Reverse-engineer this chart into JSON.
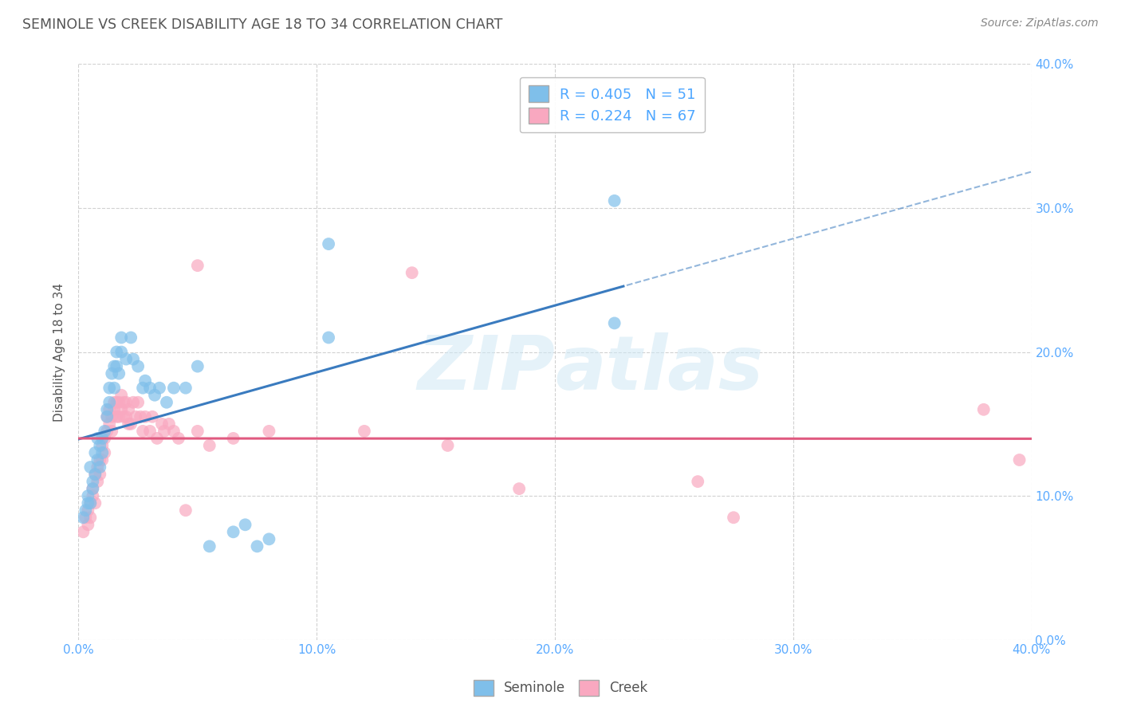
{
  "title": "SEMINOLE VS CREEK DISABILITY AGE 18 TO 34 CORRELATION CHART",
  "source": "Source: ZipAtlas.com",
  "ylabel": "Disability Age 18 to 34",
  "xlim": [
    0.0,
    0.4
  ],
  "ylim": [
    0.0,
    0.4
  ],
  "xticks": [
    0.0,
    0.1,
    0.2,
    0.3,
    0.4
  ],
  "yticks": [
    0.0,
    0.1,
    0.2,
    0.3,
    0.4
  ],
  "xlabels": [
    "0.0%",
    "10.0%",
    "20.0%",
    "30.0%",
    "40.0%"
  ],
  "ylabels": [
    "0.0%",
    "10.0%",
    "20.0%",
    "30.0%",
    "40.0%"
  ],
  "seminole_R": 0.405,
  "seminole_N": 51,
  "creek_R": 0.224,
  "creek_N": 67,
  "seminole_color": "#7fbfea",
  "creek_color": "#f9a8c0",
  "seminole_line_color": "#3a7bbf",
  "creek_line_color": "#e05a80",
  "watermark": "ZIPatlas",
  "seminole_points": [
    [
      0.002,
      0.085
    ],
    [
      0.003,
      0.09
    ],
    [
      0.004,
      0.1
    ],
    [
      0.004,
      0.095
    ],
    [
      0.005,
      0.095
    ],
    [
      0.005,
      0.12
    ],
    [
      0.006,
      0.105
    ],
    [
      0.006,
      0.11
    ],
    [
      0.007,
      0.115
    ],
    [
      0.007,
      0.13
    ],
    [
      0.008,
      0.125
    ],
    [
      0.008,
      0.14
    ],
    [
      0.009,
      0.12
    ],
    [
      0.009,
      0.135
    ],
    [
      0.01,
      0.14
    ],
    [
      0.01,
      0.13
    ],
    [
      0.011,
      0.145
    ],
    [
      0.012,
      0.155
    ],
    [
      0.012,
      0.16
    ],
    [
      0.013,
      0.165
    ],
    [
      0.013,
      0.175
    ],
    [
      0.014,
      0.185
    ],
    [
      0.015,
      0.175
    ],
    [
      0.015,
      0.19
    ],
    [
      0.016,
      0.19
    ],
    [
      0.016,
      0.2
    ],
    [
      0.017,
      0.185
    ],
    [
      0.018,
      0.2
    ],
    [
      0.018,
      0.21
    ],
    [
      0.02,
      0.195
    ],
    [
      0.022,
      0.21
    ],
    [
      0.023,
      0.195
    ],
    [
      0.025,
      0.19
    ],
    [
      0.027,
      0.175
    ],
    [
      0.028,
      0.18
    ],
    [
      0.03,
      0.175
    ],
    [
      0.032,
      0.17
    ],
    [
      0.034,
      0.175
    ],
    [
      0.037,
      0.165
    ],
    [
      0.04,
      0.175
    ],
    [
      0.045,
      0.175
    ],
    [
      0.05,
      0.19
    ],
    [
      0.055,
      0.065
    ],
    [
      0.065,
      0.075
    ],
    [
      0.07,
      0.08
    ],
    [
      0.075,
      0.065
    ],
    [
      0.08,
      0.07
    ],
    [
      0.105,
      0.21
    ],
    [
      0.105,
      0.275
    ],
    [
      0.225,
      0.22
    ],
    [
      0.225,
      0.305
    ]
  ],
  "creek_points": [
    [
      0.002,
      0.075
    ],
    [
      0.003,
      0.085
    ],
    [
      0.004,
      0.08
    ],
    [
      0.004,
      0.09
    ],
    [
      0.005,
      0.085
    ],
    [
      0.005,
      0.095
    ],
    [
      0.006,
      0.1
    ],
    [
      0.006,
      0.105
    ],
    [
      0.007,
      0.095
    ],
    [
      0.007,
      0.115
    ],
    [
      0.008,
      0.11
    ],
    [
      0.008,
      0.12
    ],
    [
      0.009,
      0.115
    ],
    [
      0.009,
      0.125
    ],
    [
      0.01,
      0.125
    ],
    [
      0.01,
      0.135
    ],
    [
      0.011,
      0.13
    ],
    [
      0.011,
      0.14
    ],
    [
      0.012,
      0.145
    ],
    [
      0.012,
      0.155
    ],
    [
      0.013,
      0.15
    ],
    [
      0.013,
      0.16
    ],
    [
      0.014,
      0.145
    ],
    [
      0.014,
      0.155
    ],
    [
      0.015,
      0.16
    ],
    [
      0.015,
      0.165
    ],
    [
      0.016,
      0.155
    ],
    [
      0.016,
      0.165
    ],
    [
      0.017,
      0.155
    ],
    [
      0.017,
      0.165
    ],
    [
      0.018,
      0.16
    ],
    [
      0.018,
      0.17
    ],
    [
      0.019,
      0.155
    ],
    [
      0.019,
      0.165
    ],
    [
      0.02,
      0.155
    ],
    [
      0.02,
      0.165
    ],
    [
      0.021,
      0.15
    ],
    [
      0.021,
      0.16
    ],
    [
      0.022,
      0.15
    ],
    [
      0.023,
      0.165
    ],
    [
      0.024,
      0.155
    ],
    [
      0.025,
      0.165
    ],
    [
      0.026,
      0.155
    ],
    [
      0.027,
      0.145
    ],
    [
      0.028,
      0.155
    ],
    [
      0.03,
      0.145
    ],
    [
      0.031,
      0.155
    ],
    [
      0.033,
      0.14
    ],
    [
      0.035,
      0.15
    ],
    [
      0.036,
      0.145
    ],
    [
      0.038,
      0.15
    ],
    [
      0.04,
      0.145
    ],
    [
      0.042,
      0.14
    ],
    [
      0.045,
      0.09
    ],
    [
      0.05,
      0.145
    ],
    [
      0.055,
      0.135
    ],
    [
      0.065,
      0.14
    ],
    [
      0.08,
      0.145
    ],
    [
      0.12,
      0.145
    ],
    [
      0.14,
      0.255
    ],
    [
      0.155,
      0.135
    ],
    [
      0.185,
      0.105
    ],
    [
      0.26,
      0.11
    ],
    [
      0.275,
      0.085
    ],
    [
      0.38,
      0.16
    ],
    [
      0.395,
      0.125
    ],
    [
      0.05,
      0.26
    ]
  ],
  "background_color": "#ffffff",
  "grid_color": "#cccccc",
  "title_color": "#555555",
  "axis_label_color": "#555555",
  "tick_color": "#5aaaff",
  "legend_text_color": "#4da6ff"
}
